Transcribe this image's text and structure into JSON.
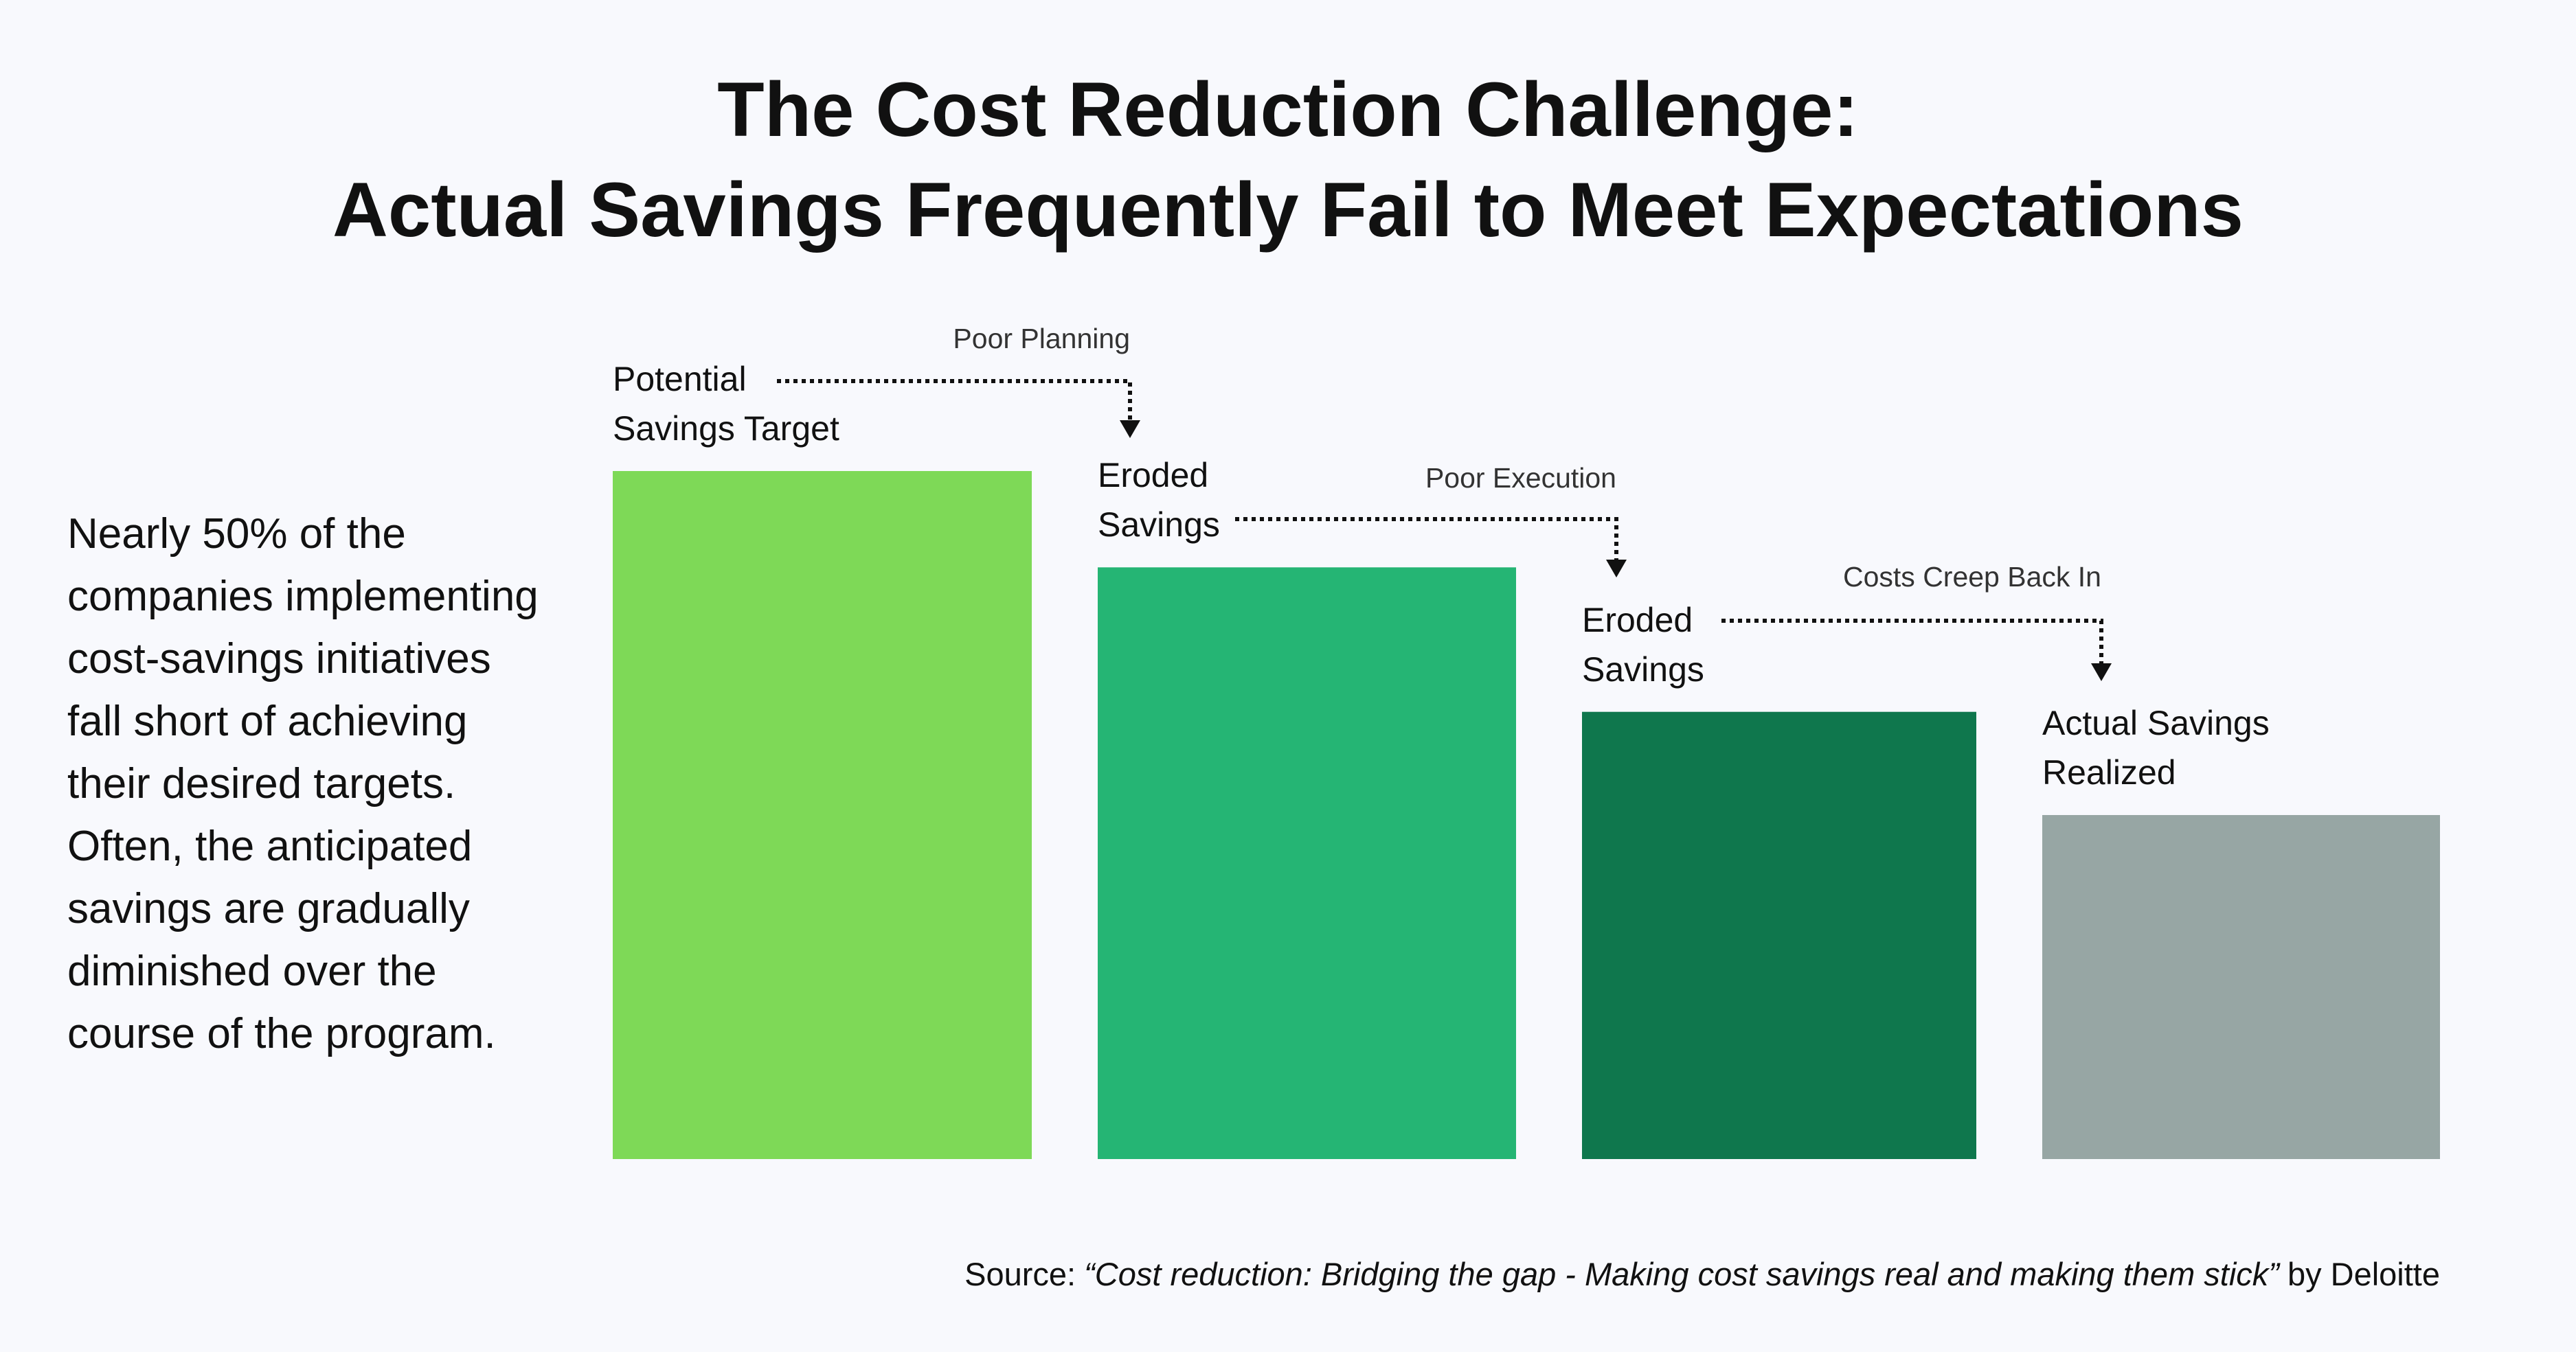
{
  "chart_data": {
    "type": "bar",
    "title": "The Cost Reduction Challenge:",
    "subtitle": "Actual Savings Frequently Fail to Meet Expectations",
    "description": "Nearly 50% of the companies implementing cost-savings initiatives fall short of achieving their desired targets. Often, the anticipated savings are gradually diminished over the course of the program.",
    "categories": [
      "Potential Savings Target",
      "Eroded Savings",
      "Eroded Savings",
      "Actual Savings Realized"
    ],
    "values": [
      100,
      86,
      65,
      50
    ],
    "colors": [
      "#7ed957",
      "#25b574",
      "#0f774d",
      "#97a6a4"
    ],
    "ylim": [
      0,
      100
    ],
    "annotations": [
      "Poor Planning",
      "Poor Execution",
      "Costs Creep Back In"
    ],
    "source_prefix": "Source:",
    "source_title": "“Cost reduction: Bridging the gap - Making cost savings real and making them stick”",
    "source_suffix": "by Deloitte"
  }
}
